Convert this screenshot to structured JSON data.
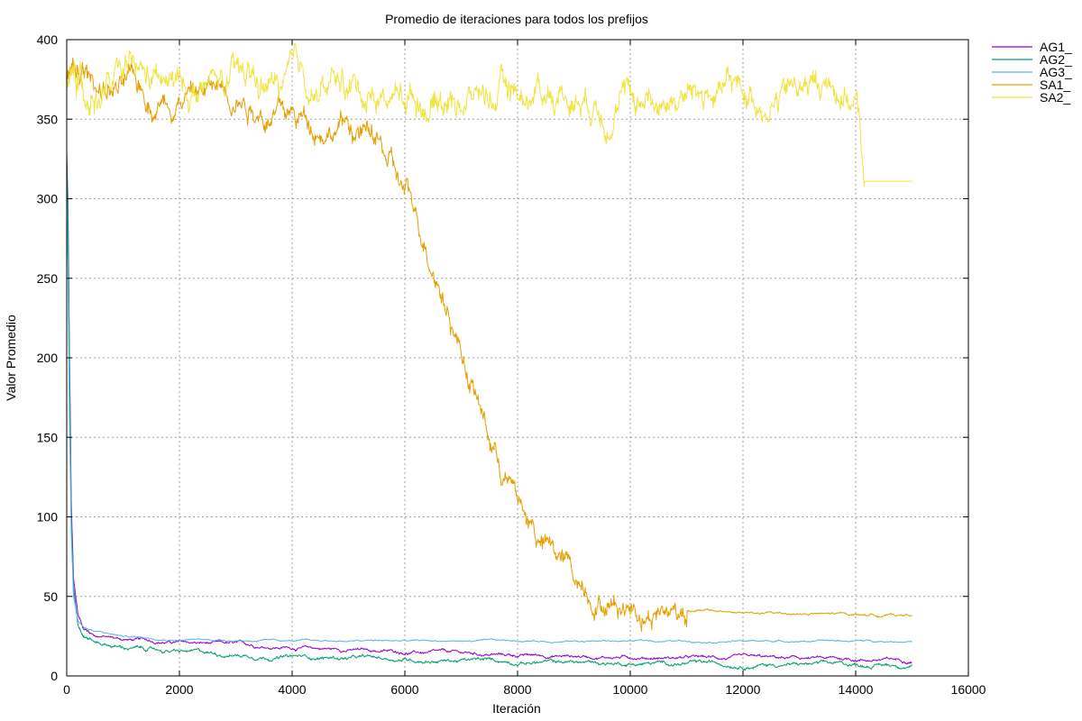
{
  "chart_data": {
    "type": "line",
    "title": "Promedio de iteraciones para todos los prefijos",
    "xlabel": "Iteración",
    "ylabel": "Valor Promedio",
    "xlim": [
      0,
      16000
    ],
    "ylim": [
      0,
      400
    ],
    "xticks": [
      0,
      2000,
      4000,
      6000,
      8000,
      10000,
      12000,
      14000,
      16000
    ],
    "yticks": [
      0,
      50,
      100,
      150,
      200,
      250,
      300,
      350,
      400
    ],
    "grid": true,
    "legend_position": "outside-top-right",
    "series": [
      {
        "name": "AG1_",
        "color": "#9400d3",
        "noise": 1.0,
        "points": [
          [
            0,
            330
          ],
          [
            20,
            300
          ],
          [
            50,
            200
          ],
          [
            80,
            110
          ],
          [
            120,
            60
          ],
          [
            200,
            38
          ],
          [
            300,
            30
          ],
          [
            500,
            26
          ],
          [
            1000,
            23
          ],
          [
            2000,
            21
          ],
          [
            4000,
            18
          ],
          [
            6000,
            15
          ],
          [
            8000,
            13
          ],
          [
            10000,
            12
          ],
          [
            12000,
            11
          ],
          [
            14000,
            10.5
          ],
          [
            15000,
            10
          ]
        ]
      },
      {
        "name": "AG2_",
        "color": "#009e73",
        "noise": 1.2,
        "points": [
          [
            0,
            325
          ],
          [
            20,
            295
          ],
          [
            50,
            190
          ],
          [
            80,
            100
          ],
          [
            120,
            55
          ],
          [
            200,
            33
          ],
          [
            300,
            27
          ],
          [
            500,
            22
          ],
          [
            1000,
            18
          ],
          [
            2000,
            15
          ],
          [
            4000,
            12
          ],
          [
            6000,
            10.5
          ],
          [
            8000,
            9
          ],
          [
            10000,
            8
          ],
          [
            12000,
            7.5
          ],
          [
            14000,
            7
          ],
          [
            15000,
            7
          ]
        ]
      },
      {
        "name": "AG3_",
        "color": "#56b4e9",
        "noise": 0.5,
        "points": [
          [
            0,
            300
          ],
          [
            20,
            260
          ],
          [
            50,
            160
          ],
          [
            80,
            90
          ],
          [
            120,
            50
          ],
          [
            200,
            35
          ],
          [
            300,
            31
          ],
          [
            500,
            28
          ],
          [
            1000,
            25
          ],
          [
            2000,
            23
          ],
          [
            3000,
            22.5
          ],
          [
            4000,
            22
          ],
          [
            15000,
            22
          ]
        ]
      },
      {
        "name": "SA1_",
        "color": "#e69f00",
        "noise": 8.0,
        "points": [
          [
            0,
            375
          ],
          [
            500,
            372
          ],
          [
            1000,
            368
          ],
          [
            1500,
            362
          ],
          [
            2000,
            370
          ],
          [
            2500,
            368
          ],
          [
            3000,
            372
          ],
          [
            3500,
            360
          ],
          [
            4000,
            350
          ],
          [
            4500,
            350
          ],
          [
            5000,
            348
          ],
          [
            5500,
            335
          ],
          [
            6000,
            300
          ],
          [
            6500,
            265
          ],
          [
            7000,
            210
          ],
          [
            7500,
            150
          ],
          [
            8000,
            110
          ],
          [
            8500,
            80
          ],
          [
            9000,
            62
          ],
          [
            9500,
            52
          ],
          [
            10000,
            47
          ],
          [
            11000,
            42
          ],
          [
            12000,
            39.5
          ],
          [
            13000,
            39
          ],
          [
            14000,
            38.5
          ],
          [
            15000,
            38.5
          ]
        ]
      },
      {
        "name": "SA2_",
        "color": "#f0e442",
        "noise": 10.0,
        "points": [
          [
            0,
            370
          ],
          [
            1000,
            372
          ],
          [
            2000,
            366
          ],
          [
            3000,
            370
          ],
          [
            4000,
            368
          ],
          [
            5000,
            370
          ],
          [
            6000,
            367
          ],
          [
            7000,
            366
          ],
          [
            8000,
            368
          ],
          [
            9000,
            370
          ],
          [
            10000,
            364
          ],
          [
            11000,
            366
          ],
          [
            12000,
            364
          ],
          [
            13000,
            368
          ],
          [
            13800,
            372
          ],
          [
            14000,
            365
          ],
          [
            14100,
            330
          ],
          [
            14150,
            311
          ],
          [
            15000,
            311
          ]
        ]
      }
    ]
  }
}
